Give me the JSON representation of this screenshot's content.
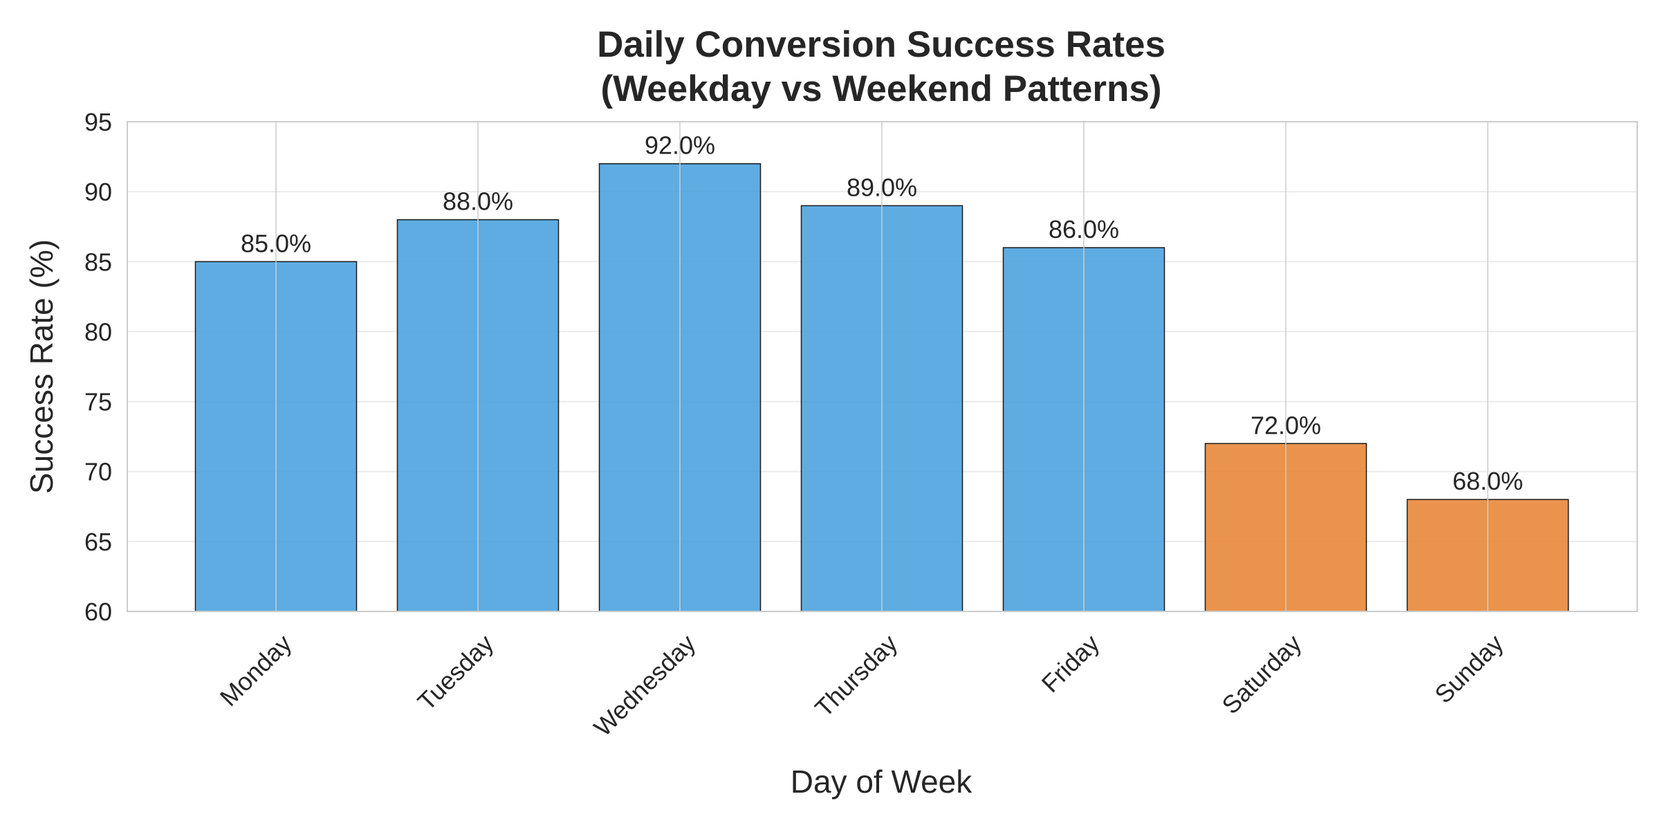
{
  "chart_data": {
    "type": "bar",
    "title_lines": [
      "Daily Conversion Success Rates",
      "(Weekday vs Weekend Patterns)"
    ],
    "xlabel": "Day of Week",
    "ylabel": "Success Rate (%)",
    "categories": [
      "Monday",
      "Tuesday",
      "Wednesday",
      "Thursday",
      "Friday",
      "Saturday",
      "Sunday"
    ],
    "values": [
      85.0,
      88.0,
      92.0,
      89.0,
      86.0,
      72.0,
      68.0
    ],
    "data_labels": [
      "85.0%",
      "88.0%",
      "92.0%",
      "89.0%",
      "86.0%",
      "72.0%",
      "68.0%"
    ],
    "bar_colors": [
      "#4da3df",
      "#4da3df",
      "#4da3df",
      "#4da3df",
      "#4da3df",
      "#e8873a",
      "#e8873a"
    ],
    "ylim": [
      60,
      95
    ],
    "yticks": [
      60,
      65,
      70,
      75,
      80,
      85,
      90,
      95
    ],
    "ytick_labels": [
      "60",
      "65",
      "70",
      "75",
      "80",
      "85",
      "90",
      "95"
    ],
    "grid": true,
    "legend": "none"
  }
}
